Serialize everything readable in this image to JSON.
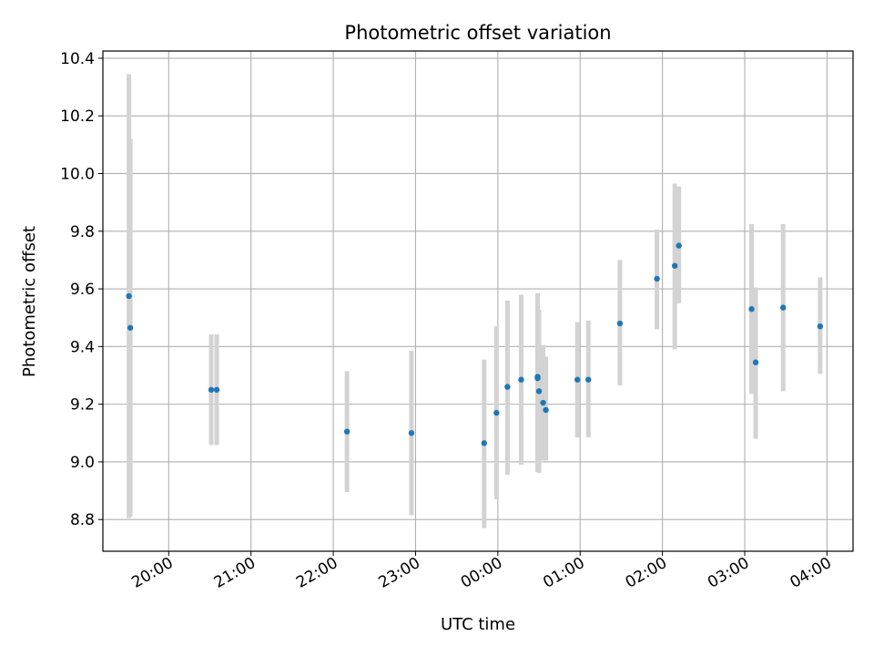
{
  "chart_data": {
    "type": "scatter",
    "title": "Photometric offset variation",
    "xlabel": "UTC time",
    "ylabel": "Photometric offset",
    "ylim": [
      8.69,
      10.425
    ],
    "xlim": [
      "19:12",
      "04:19"
    ],
    "grid": true,
    "x_ticks": [
      "20:00",
      "21:00",
      "22:00",
      "23:00",
      "00:00",
      "01:00",
      "02:00",
      "03:00",
      "04:00"
    ],
    "y_ticks": [
      8.8,
      9.0,
      9.2,
      9.4,
      9.6,
      9.8,
      10.0,
      10.2,
      10.4
    ],
    "points": [
      {
        "time": "19:31",
        "y": 9.575,
        "err_low": 8.805,
        "err_high": 10.345
      },
      {
        "time": "19:32",
        "y": 9.465,
        "err_low": 8.81,
        "err_high": 10.12
      },
      {
        "time": "20:31",
        "y": 9.25,
        "err_low": 9.058,
        "err_high": 9.442
      },
      {
        "time": "20:35",
        "y": 9.25,
        "err_low": 9.058,
        "err_high": 9.442
      },
      {
        "time": "22:10",
        "y": 9.105,
        "err_low": 8.895,
        "err_high": 9.315
      },
      {
        "time": "22:57",
        "y": 9.1,
        "err_low": 8.815,
        "err_high": 9.385
      },
      {
        "time": "23:50",
        "y": 9.065,
        "err_low": 8.77,
        "err_high": 9.355
      },
      {
        "time": "23:59",
        "y": 9.17,
        "err_low": 8.87,
        "err_high": 9.47
      },
      {
        "time": "00:07",
        "y": 9.26,
        "err_low": 8.955,
        "err_high": 9.56
      },
      {
        "time": "00:17",
        "y": 9.285,
        "err_low": 8.99,
        "err_high": 9.58
      },
      {
        "time": "00:29",
        "y": 9.295,
        "err_low": 9.005,
        "err_high": 9.585
      },
      {
        "time": "00:29",
        "y": 9.29,
        "err_low": 8.965,
        "err_high": 9.525
      },
      {
        "time": "00:30",
        "y": 9.245,
        "err_low": 8.962,
        "err_high": 9.528
      },
      {
        "time": "00:33",
        "y": 9.205,
        "err_low": 9.005,
        "err_high": 9.405
      },
      {
        "time": "00:35",
        "y": 9.18,
        "err_low": 9.005,
        "err_high": 9.365
      },
      {
        "time": "00:58",
        "y": 9.285,
        "err_low": 9.085,
        "err_high": 9.485
      },
      {
        "time": "01:06",
        "y": 9.285,
        "err_low": 9.085,
        "err_high": 9.49
      },
      {
        "time": "01:29",
        "y": 9.48,
        "err_low": 9.265,
        "err_high": 9.7
      },
      {
        "time": "01:56",
        "y": 9.635,
        "err_low": 9.46,
        "err_high": 9.805
      },
      {
        "time": "02:09",
        "y": 9.68,
        "err_low": 9.39,
        "err_high": 9.965
      },
      {
        "time": "02:12",
        "y": 9.75,
        "err_low": 9.55,
        "err_high": 9.955
      },
      {
        "time": "03:05",
        "y": 9.53,
        "err_low": 9.235,
        "err_high": 9.825
      },
      {
        "time": "03:08",
        "y": 9.345,
        "err_low": 9.08,
        "err_high": 9.605
      },
      {
        "time": "03:28",
        "y": 9.535,
        "err_low": 9.245,
        "err_high": 9.825
      },
      {
        "time": "03:55",
        "y": 9.47,
        "err_low": 9.305,
        "err_high": 9.64
      }
    ],
    "colors": {
      "point": "#1f77b4",
      "errorbar": "#d3d3d3",
      "grid": "#b0b0b0"
    }
  }
}
